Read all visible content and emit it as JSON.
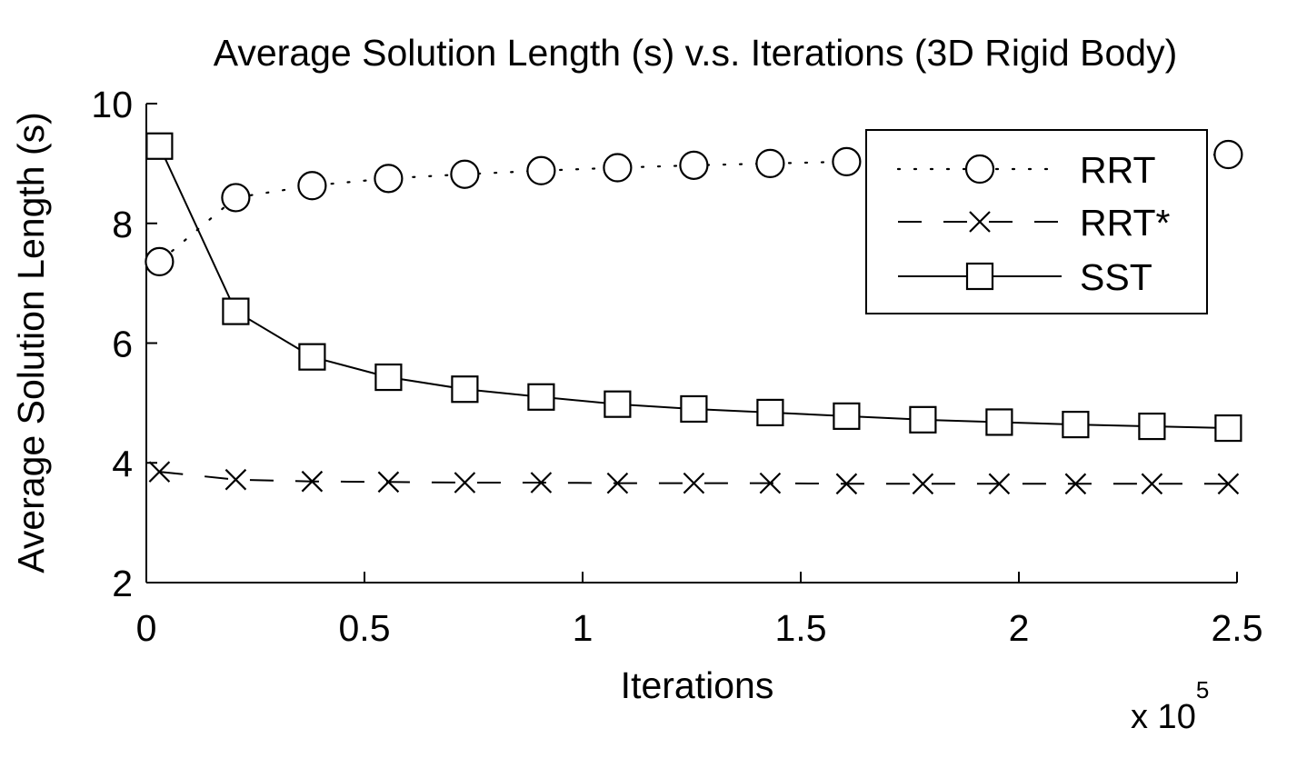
{
  "chart_data": {
    "type": "line",
    "title": "Average Solution Length (s) v.s. Iterations (3D Rigid Body)",
    "xlabel": "Iterations",
    "ylabel": "Average Solution Length (s)",
    "x_multiplier": {
      "base": "x 10",
      "exponent": "5"
    },
    "xlim": [
      0,
      2.5
    ],
    "ylim": [
      2,
      10
    ],
    "xticks": [
      0,
      0.5,
      1,
      1.5,
      2,
      2.5
    ],
    "xtick_labels": [
      "0",
      "0.5",
      "1",
      "1.5",
      "2",
      "2.5"
    ],
    "yticks": [
      2,
      4,
      6,
      8,
      10
    ],
    "ytick_labels": [
      "2",
      "4",
      "6",
      "8",
      "10"
    ],
    "grid": false,
    "legend_position": "top-right",
    "x": [
      0.03,
      0.205,
      0.38,
      0.555,
      0.73,
      0.905,
      1.08,
      1.255,
      1.43,
      1.605,
      1.78,
      1.955,
      2.13,
      2.305,
      2.48
    ],
    "series": [
      {
        "name": "RRT",
        "line_style": "dotted",
        "marker": "circle",
        "values": [
          7.36,
          8.43,
          8.63,
          8.75,
          8.82,
          8.88,
          8.93,
          8.97,
          9.0,
          9.03,
          9.06,
          9.09,
          9.11,
          9.13,
          9.15
        ]
      },
      {
        "name": "RRT*",
        "line_style": "dashed",
        "marker": "x",
        "values": [
          3.85,
          3.72,
          3.69,
          3.68,
          3.67,
          3.67,
          3.66,
          3.66,
          3.66,
          3.65,
          3.65,
          3.65,
          3.65,
          3.65,
          3.65
        ]
      },
      {
        "name": "SST",
        "line_style": "solid",
        "marker": "square",
        "values": [
          9.29,
          6.53,
          5.77,
          5.43,
          5.23,
          5.1,
          4.98,
          4.9,
          4.84,
          4.78,
          4.72,
          4.68,
          4.64,
          4.61,
          4.58
        ]
      }
    ]
  }
}
